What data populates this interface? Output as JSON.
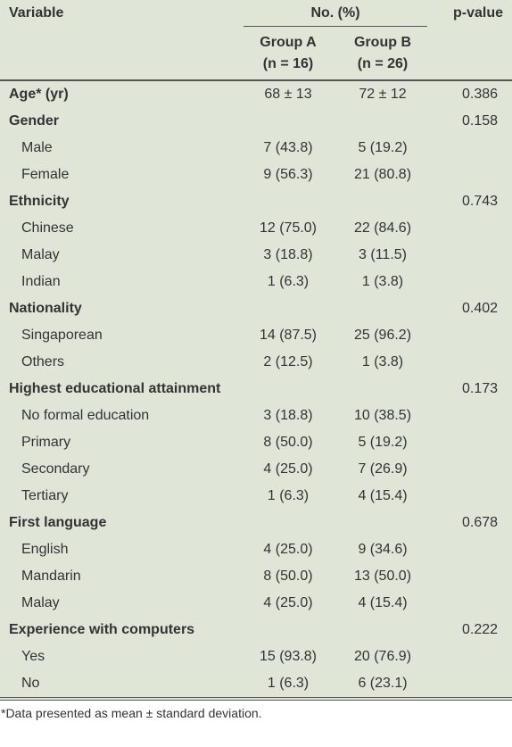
{
  "header": {
    "variable": "Variable",
    "count_heading": "No. (%)",
    "p_value": "p-value",
    "groups": [
      {
        "name": "Group A",
        "n": "(n = 16)"
      },
      {
        "name": "Group B",
        "n": "(n = 26)"
      }
    ]
  },
  "rows": [
    {
      "label": "Age* (yr)",
      "group_a": "68 ± 13",
      "group_b": "72 ± 12",
      "p_value": "0.386"
    },
    {
      "label": "Gender",
      "p_value": "0.158",
      "items": [
        {
          "label": "Male",
          "group_a": "7 (43.8)",
          "group_b": "5 (19.2)"
        },
        {
          "label": "Female",
          "group_a": "9 (56.3)",
          "group_b": "21 (80.8)"
        }
      ]
    },
    {
      "label": "Ethnicity",
      "p_value": "0.743",
      "items": [
        {
          "label": "Chinese",
          "group_a": "12 (75.0)",
          "group_b": "22 (84.6)"
        },
        {
          "label": "Malay",
          "group_a": "3 (18.8)",
          "group_b": "3 (11.5)"
        },
        {
          "label": "Indian",
          "group_a": "1 (6.3)",
          "group_b": "1 (3.8)"
        }
      ]
    },
    {
      "label": "Nationality",
      "p_value": "0.402",
      "items": [
        {
          "label": "Singaporean",
          "group_a": "14 (87.5)",
          "group_b": "25 (96.2)"
        },
        {
          "label": "Others",
          "group_a": "2 (12.5)",
          "group_b": "1 (3.8)"
        }
      ]
    },
    {
      "label": "Highest educational attainment",
      "p_value": "0.173",
      "items": [
        {
          "label": "No formal education",
          "group_a": "3 (18.8)",
          "group_b": "10 (38.5)"
        },
        {
          "label": "Primary",
          "group_a": "8 (50.0)",
          "group_b": "5 (19.2)"
        },
        {
          "label": "Secondary",
          "group_a": "4 (25.0)",
          "group_b": "7 (26.9)"
        },
        {
          "label": "Tertiary",
          "group_a": "1 (6.3)",
          "group_b": "4 (15.4)"
        }
      ]
    },
    {
      "label": "First language",
      "p_value": "0.678",
      "items": [
        {
          "label": "English",
          "group_a": "4 (25.0)",
          "group_b": "9 (34.6)"
        },
        {
          "label": "Mandarin",
          "group_a": "8 (50.0)",
          "group_b": "13 (50.0)"
        },
        {
          "label": "Malay",
          "group_a": "4 (25.0)",
          "group_b": "4 (15.4)"
        }
      ]
    },
    {
      "label": "Experience with computers",
      "p_value": "0.222",
      "items": [
        {
          "label": "Yes",
          "group_a": "15 (93.8)",
          "group_b": "20 (76.9)"
        },
        {
          "label": "No",
          "group_a": "1 (6.3)",
          "group_b": "6 (23.1)"
        }
      ]
    }
  ],
  "footnote": "*Data presented as mean ± standard deviation."
}
